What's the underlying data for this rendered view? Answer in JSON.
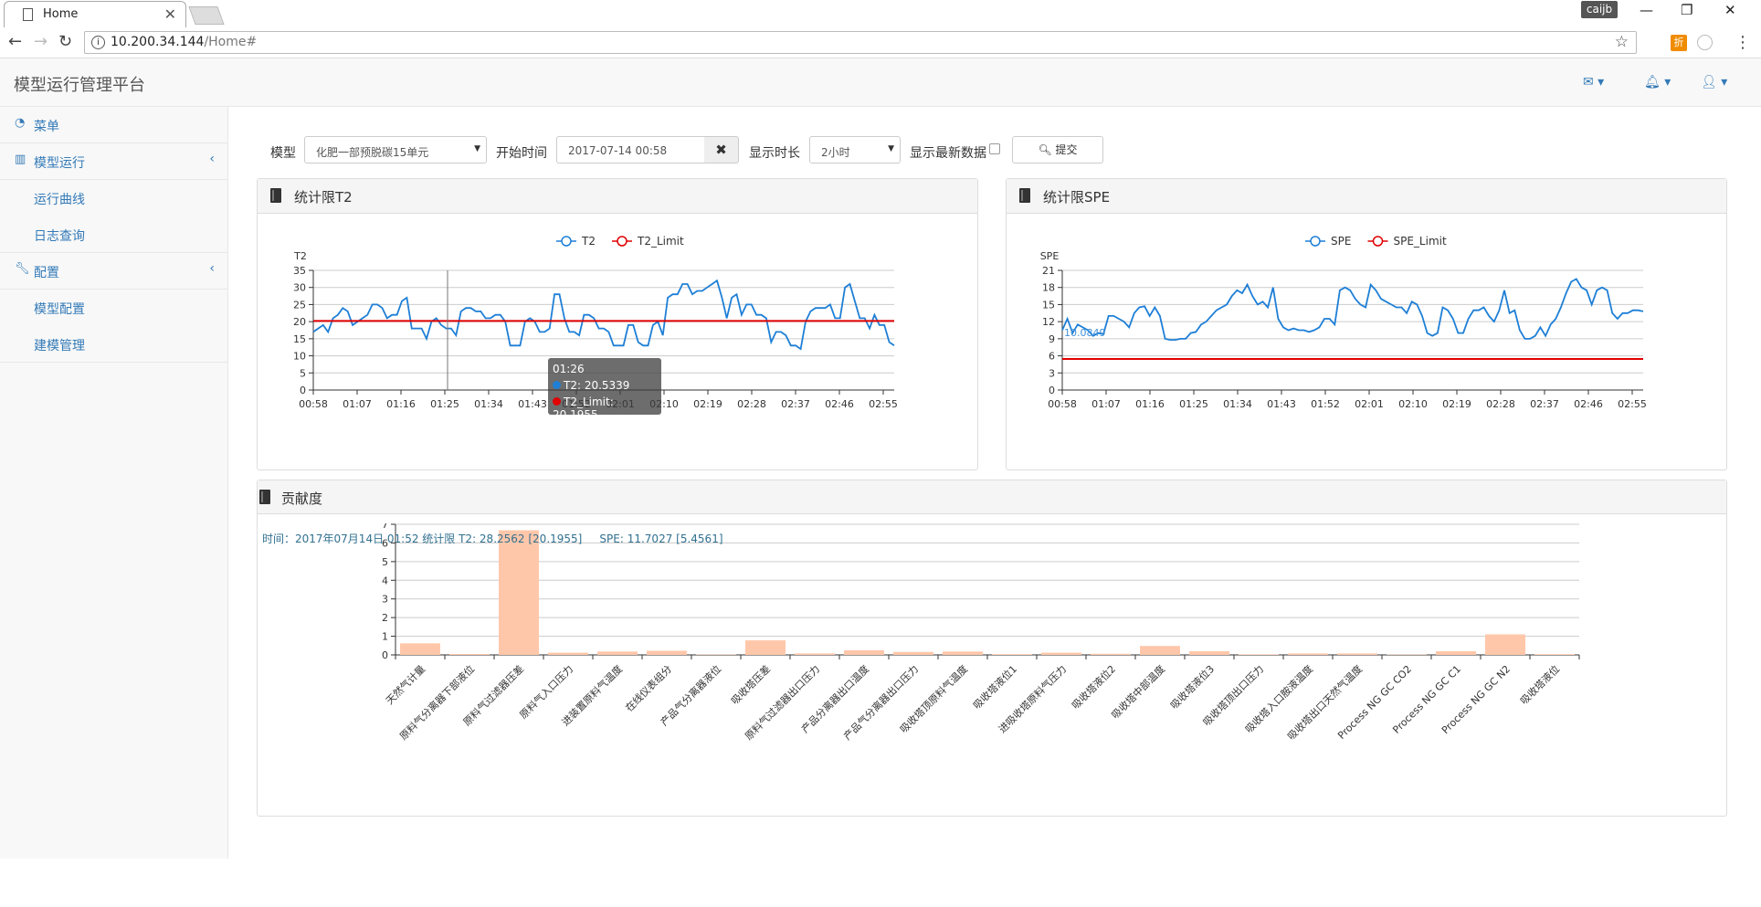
{
  "browser": {
    "tab_title": "Home",
    "tab_close": "✕",
    "window_user": "caijb",
    "url_host": "10.200.34.144",
    "url_path": "/Home#",
    "ext_label": "折"
  },
  "app": {
    "brand": "模型运行管理平台"
  },
  "sidebar": {
    "items": [
      {
        "label": "菜单",
        "icon": "dashboard-icon"
      },
      {
        "label": "模型运行",
        "icon": "bar-chart-icon",
        "arrow": "‹"
      },
      {
        "label": "运行曲线"
      },
      {
        "label": "日志查询"
      },
      {
        "label": "配置",
        "icon": "wrench-icon",
        "arrow": "‹"
      },
      {
        "label": "模型配置"
      },
      {
        "label": "建模管理"
      }
    ]
  },
  "form": {
    "model_label": "模型",
    "model_value": "化肥一部预脱碳15单元",
    "start_label": "开始时间",
    "start_value": "2017-07-14 00:58",
    "duration_label": "显示时长",
    "duration_value": "2小时",
    "latest_label": "显示最新数据",
    "submit_label": "提交"
  },
  "panels": {
    "t2_title": "统计限T2",
    "spe_title": "统计限SPE",
    "contrib_title": "贡献度"
  },
  "contrib_info": "时间：2017年07月14日 01:52 统计限 T2: 28.2562 [20.1955]     SPE: 11.7027 [5.4561]",
  "tooltip": {
    "time": "01:26",
    "t2": "T2: 20.5339",
    "t2_limit": "T2_Limit: 20.1955"
  },
  "chart_data": [
    {
      "type": "line",
      "ylabel": "T2",
      "ylim": [
        0,
        35
      ],
      "yticks": [
        0,
        5,
        10,
        15,
        20,
        25,
        30,
        35
      ],
      "xticks": [
        "00:58",
        "01:07",
        "01:16",
        "01:25",
        "01:34",
        "01:43",
        "01:52",
        "02:01",
        "02:10",
        "02:19",
        "02:28",
        "02:37",
        "02:46",
        "02:55"
      ],
      "legend_position": "top-center",
      "series": [
        {
          "name": "T2",
          "color": "#1e7fd6",
          "values": [
            17,
            18,
            19,
            17,
            21,
            22,
            24,
            23,
            19,
            20,
            21,
            22,
            25,
            25,
            24,
            21,
            22,
            22,
            26,
            27,
            18,
            18,
            18,
            15,
            20,
            21,
            19,
            18,
            18,
            16,
            23,
            24,
            24,
            23,
            23,
            21,
            21,
            22,
            22,
            20,
            13,
            13,
            13,
            20,
            21,
            20,
            17,
            17,
            18,
            28,
            28,
            21,
            17,
            17,
            16,
            22,
            22,
            21,
            18,
            18,
            17,
            13,
            13,
            13,
            19,
            19,
            14,
            13,
            13,
            19,
            20,
            16,
            27,
            28,
            28,
            31,
            31,
            28,
            29,
            29,
            30,
            31,
            32,
            27,
            21,
            27,
            28,
            22,
            25,
            25,
            22,
            22,
            21,
            14,
            17,
            17,
            16,
            13,
            13,
            12,
            20,
            23,
            24,
            24,
            24,
            25,
            21,
            21,
            30,
            31,
            26,
            21,
            21,
            18,
            22,
            19,
            19,
            14,
            13
          ],
          "annotations": []
        },
        {
          "name": "T2_Limit",
          "color": "#e00000",
          "values": [
            20.1955,
            20.1955
          ]
        }
      ]
    },
    {
      "type": "line",
      "ylabel": "SPE",
      "ylim": [
        0,
        21
      ],
      "yticks": [
        0,
        3,
        6,
        9,
        12,
        15,
        18,
        21
      ],
      "xticks": [
        "00:58",
        "01:07",
        "01:16",
        "01:25",
        "01:34",
        "01:43",
        "01:52",
        "02:01",
        "02:10",
        "02:19",
        "02:28",
        "02:37",
        "02:46",
        "02:55"
      ],
      "legend_position": "top-center",
      "point_label": "10.0849",
      "series": [
        {
          "name": "SPE",
          "color": "#1e7fd6",
          "values": [
            10.5,
            12.5,
            10,
            11.5,
            11,
            10.5,
            9.5,
            10,
            9.8,
            13,
            13,
            12.5,
            12,
            11,
            13.5,
            14.5,
            14.7,
            13,
            14.5,
            13,
            9,
            8.8,
            8.8,
            9,
            9,
            10,
            10.2,
            11.5,
            12,
            13,
            14,
            14.5,
            15,
            16.5,
            17.5,
            17,
            18.5,
            16.5,
            15,
            15.5,
            14.5,
            18,
            12.5,
            11,
            10.5,
            10.8,
            10.5,
            10.5,
            10.2,
            10.5,
            11,
            12.5,
            12.5,
            11.5,
            17.5,
            18,
            17.5,
            16,
            15,
            14.5,
            18.5,
            17.5,
            16,
            15.5,
            15,
            14.5,
            14.5,
            13.5,
            15.5,
            15,
            13,
            10,
            9.5,
            10,
            14.5,
            14,
            12.5,
            10,
            10,
            12.5,
            14,
            14,
            14.5,
            13,
            12,
            14,
            17.5,
            13.5,
            14,
            10.5,
            9,
            9,
            9.5,
            11,
            9.5,
            11.5,
            12.5,
            14.5,
            17,
            19,
            19.5,
            18,
            17.5,
            15,
            17.5,
            18,
            17.5,
            13.5,
            12.5,
            13.5,
            13.5,
            14,
            14,
            13.8
          ]
        },
        {
          "name": "SPE_Limit",
          "color": "#e00000",
          "values": [
            5.4561,
            5.4561
          ]
        }
      ]
    },
    {
      "type": "bar",
      "ylim": [
        0,
        7
      ],
      "yticks": [
        0,
        1,
        2,
        3,
        4,
        5,
        6,
        7
      ],
      "categories": [
        "天然气计量",
        "原料气分离器下部液位",
        "原料气过滤器压差",
        "原料气入口压力",
        "进装置原料气温度",
        "在线仪表组分",
        "产品气分离器液位",
        "吸收塔压差",
        "原料气过滤器出口压力",
        "产品分离器出口温度",
        "产品气分离器出口压力",
        "吸收塔顶原料气温度",
        "吸收塔液位1",
        "进吸收塔原料气压力",
        "吸收塔液位2",
        "吸收塔中部温度",
        "吸收塔液位3",
        "吸收塔顶出口压力",
        "吸收塔入口胺液温度",
        "吸收塔出口天然气温度",
        "Process NG GC CO2",
        "Process NG GC C1",
        "Process NG GC N2",
        "吸收塔液位"
      ],
      "values": [
        0.62,
        0.05,
        6.68,
        0.12,
        0.18,
        0.22,
        0.02,
        0.78,
        0.08,
        0.25,
        0.16,
        0.18,
        0.04,
        0.12,
        0.06,
        0.48,
        0.2,
        0.03,
        0.08,
        0.08,
        0.02,
        0.2,
        1.1,
        0.04
      ],
      "color": "#ffc7aa"
    }
  ]
}
